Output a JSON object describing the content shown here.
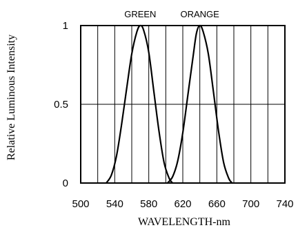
{
  "chart_data": {
    "type": "line",
    "title": "",
    "xlabel": "WAVELENGTH-nm",
    "ylabel": "Relative Luminous Intensity",
    "xlim": [
      500,
      740
    ],
    "ylim": [
      0,
      1
    ],
    "x_ticks": [
      "500",
      "540",
      "580",
      "620",
      "660",
      "700",
      "740"
    ],
    "y_ticks": [
      "0",
      "0.5",
      "1"
    ],
    "vertical_grid_every": 20,
    "horizontal_grid": [
      0.5
    ],
    "legend": "none",
    "series": [
      {
        "name": "GREEN",
        "x": [
          530,
          536,
          542,
          548,
          554,
          560,
          566,
          570,
          574,
          580,
          586,
          592,
          598,
          604,
          608
        ],
        "y": [
          0.0,
          0.05,
          0.17,
          0.37,
          0.6,
          0.82,
          0.96,
          1.0,
          0.97,
          0.83,
          0.58,
          0.33,
          0.13,
          0.03,
          0.0
        ]
      },
      {
        "name": "ORANGE",
        "x": [
          602,
          608,
          614,
          620,
          626,
          632,
          636,
          640,
          644,
          650,
          656,
          662,
          668,
          674,
          678
        ],
        "y": [
          0.0,
          0.04,
          0.14,
          0.32,
          0.56,
          0.8,
          0.95,
          1.0,
          0.96,
          0.82,
          0.58,
          0.33,
          0.13,
          0.03,
          0.0
        ]
      }
    ]
  }
}
